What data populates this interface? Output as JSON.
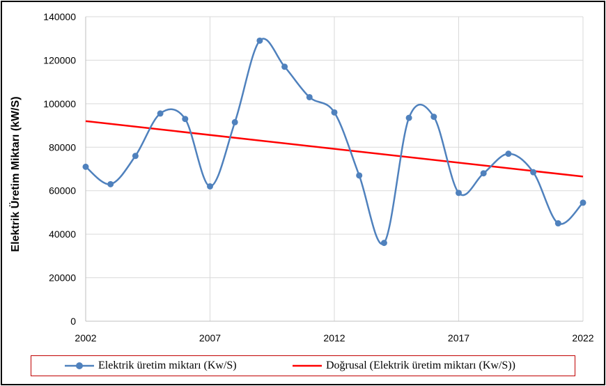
{
  "chart_data": {
    "type": "line",
    "title": "",
    "xlabel": "",
    "ylabel": "Elektrik Üretim Miktarı (kW/S)",
    "xlim": [
      2002,
      2022
    ],
    "ylim": [
      0,
      140000
    ],
    "xticks": [
      "2002",
      "2007",
      "2012",
      "2017",
      "2022"
    ],
    "yticks": [
      "0",
      "20000",
      "40000",
      "60000",
      "80000",
      "100000",
      "120000",
      "140000"
    ],
    "grid": true,
    "legend_position": "bottom",
    "series": [
      {
        "name": "Elektrik üretim miktarı (Kw/S)",
        "color": "#4f81bd",
        "marker": "circle",
        "smooth": true,
        "x": [
          2002,
          2003,
          2004,
          2005,
          2006,
          2007,
          2008,
          2009,
          2010,
          2011,
          2012,
          2013,
          2014,
          2015,
          2016,
          2017,
          2018,
          2019,
          2020,
          2021,
          2022
        ],
        "values": [
          71000,
          63000,
          76000,
          95500,
          93000,
          62000,
          91500,
          129000,
          117000,
          103000,
          96000,
          67000,
          36000,
          93500,
          94000,
          59000,
          68000,
          77000,
          68500,
          45000,
          54500
        ]
      },
      {
        "name": "Doğrusal (Elektrik üretim miktarı (Kw/S))",
        "color": "#ff0000",
        "type": "trendline",
        "x": [
          2002,
          2022
        ],
        "values": [
          92000,
          66500
        ]
      }
    ]
  }
}
